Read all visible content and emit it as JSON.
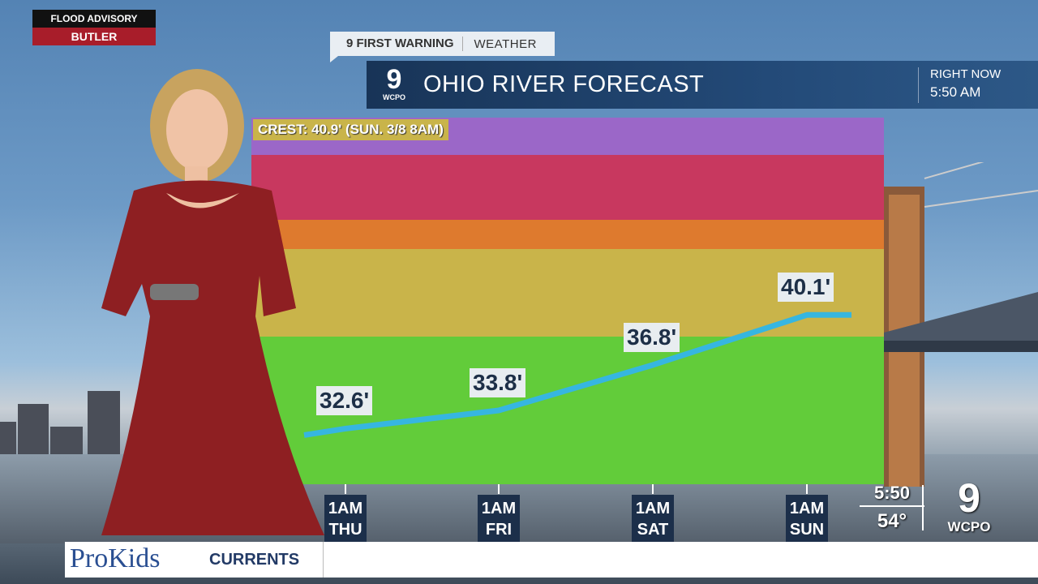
{
  "advisory": {
    "line1": "FLOOD ADVISORY",
    "line2": "BUTLER"
  },
  "header": {
    "brand_primary": "9 FIRST WARNING",
    "brand_secondary": "WEATHER",
    "logo_number": "9",
    "logo_text": "WCPO",
    "title": "OHIO RIVER FORECAST",
    "right_label": "RIGHT NOW",
    "right_time": "5:50 AM"
  },
  "colors": {
    "band_purple": "#9b67c8",
    "band_red": "#c8385f",
    "band_orange": "#de7a2e",
    "band_yellow": "#c9b44a",
    "band_green": "#62cc3a",
    "line": "#36b6e0"
  },
  "chart_data": {
    "type": "line",
    "crest_label": "CREST: 40.9' (SUN. 3/8 8AM)",
    "x": [
      "1AM THU",
      "1AM FRI",
      "1AM SAT",
      "1AM SUN"
    ],
    "categories": [
      {
        "top": "1AM",
        "bottom": "THU"
      },
      {
        "top": "1AM",
        "bottom": "FRI"
      },
      {
        "top": "1AM",
        "bottom": "SAT"
      },
      {
        "top": "1AM",
        "bottom": "SUN"
      }
    ],
    "values": [
      32.6,
      33.8,
      36.8,
      40.1
    ],
    "value_labels": [
      "32.6'",
      "33.8'",
      "36.8'",
      "40.1'"
    ],
    "grid": false
  },
  "clock": {
    "time": "5:50",
    "temp": "54°"
  },
  "station": {
    "number": "9",
    "name": "WCPO"
  },
  "ticker": {
    "brand": "ProKids",
    "segment": "CURRENTS"
  }
}
